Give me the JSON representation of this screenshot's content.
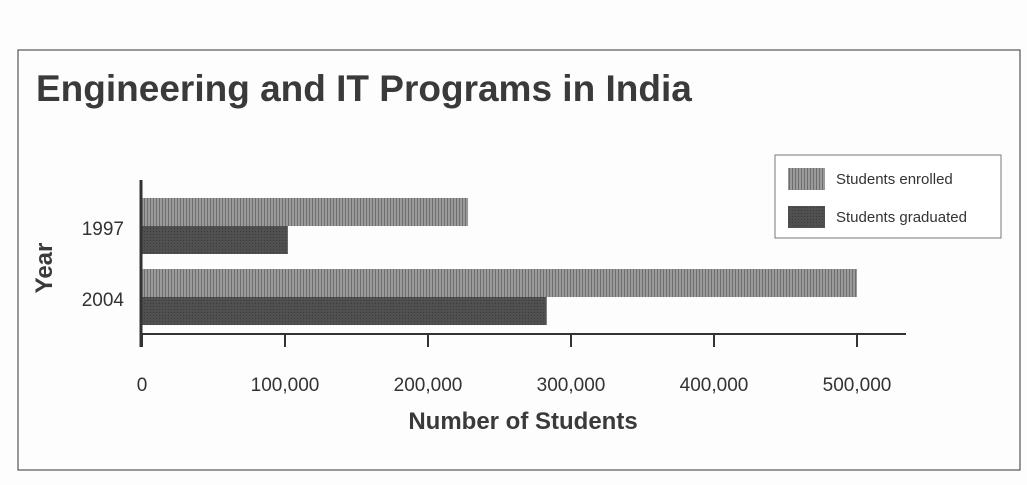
{
  "chart_data": {
    "type": "bar",
    "orientation": "horizontal",
    "title": "Engineering and IT Programs in India",
    "xlabel": "Number of Students",
    "ylabel": "Year",
    "categories": [
      "1997",
      "2004"
    ],
    "series": [
      {
        "name": "Students enrolled",
        "values": [
          228000,
          500000
        ],
        "color": "#8a8a8a"
      },
      {
        "name": "Students graduated",
        "values": [
          102000,
          283000
        ],
        "color": "#4a4a4a"
      }
    ],
    "xlim": [
      0,
      535000
    ],
    "xticks": [
      0,
      100000,
      200000,
      300000,
      400000,
      500000
    ],
    "xtick_labels": [
      "0",
      "100,000",
      "200,000",
      "300,000",
      "400,000",
      "500,000"
    ],
    "grid": false,
    "legend_position": "top-right"
  }
}
